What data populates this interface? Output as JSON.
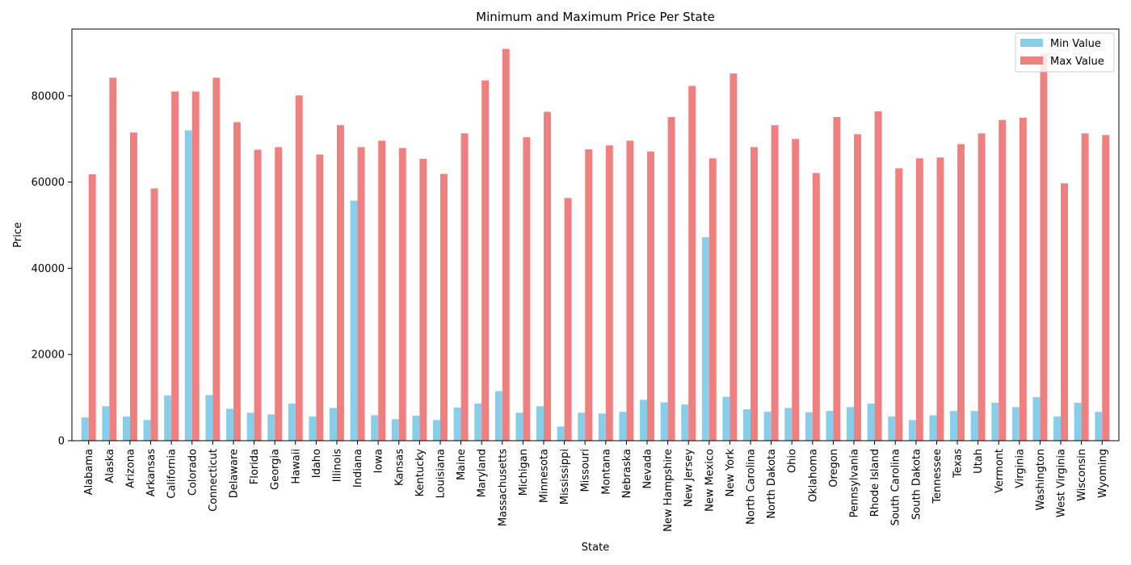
{
  "chart_data": {
    "type": "bar",
    "title": "Minimum and Maximum Price Per State",
    "xlabel": "State",
    "ylabel": "Price",
    "ylim": [
      0,
      95500
    ],
    "yticks": [
      0,
      20000,
      40000,
      60000,
      80000
    ],
    "grid": false,
    "legend_position": "top-right",
    "categories": [
      "Alabama",
      "Alaska",
      "Arizona",
      "Arkansas",
      "California",
      "Colorado",
      "Connecticut",
      "Delaware",
      "Florida",
      "Georgia",
      "Hawaii",
      "Idaho",
      "Illinois",
      "Indiana",
      "Iowa",
      "Kansas",
      "Kentucky",
      "Louisiana",
      "Maine",
      "Maryland",
      "Massachusetts",
      "Michigan",
      "Minnesota",
      "Mississippi",
      "Missouri",
      "Montana",
      "Nebraska",
      "Nevada",
      "New Hampshire",
      "New Jersey",
      "New Mexico",
      "New York",
      "North Carolina",
      "North Dakota",
      "Ohio",
      "Oklahoma",
      "Oregon",
      "Pennsylvania",
      "Rhode Island",
      "South Carolina",
      "South Dakota",
      "Tennessee",
      "Texas",
      "Utah",
      "Vermont",
      "Virginia",
      "Washington",
      "West Virginia",
      "Wisconsin",
      "Wyoming"
    ],
    "series": [
      {
        "name": "Min Value",
        "color": "#87ceeb",
        "values": [
          5400,
          8000,
          5600,
          4800,
          10500,
          72000,
          10600,
          7400,
          6500,
          6100,
          8600,
          5600,
          7600,
          55700,
          5900,
          5000,
          5800,
          4800,
          7700,
          8600,
          11500,
          6500,
          8000,
          3300,
          6500,
          6300,
          6700,
          9500,
          8900,
          8400,
          47200,
          10200,
          7300,
          6700,
          7600,
          6600,
          6900,
          7800,
          8600,
          5600,
          4800,
          5900,
          6900,
          6900,
          8800,
          7800,
          10100,
          5600,
          8800,
          6700
        ]
      },
      {
        "name": "Max Value",
        "color": "#f08080",
        "values": [
          61800,
          84200,
          71500,
          58500,
          81000,
          81000,
          84200,
          73900,
          67500,
          68100,
          80100,
          66400,
          73200,
          68100,
          69600,
          67900,
          65400,
          61900,
          71300,
          83600,
          90900,
          70400,
          76300,
          56300,
          67600,
          68500,
          69600,
          67100,
          75100,
          82300,
          65500,
          85200,
          68100,
          73200,
          70000,
          62100,
          75100,
          71100,
          76400,
          63200,
          65500,
          65700,
          68800,
          71300,
          74400,
          74900,
          89800,
          59700,
          71300,
          70900
        ]
      }
    ]
  }
}
